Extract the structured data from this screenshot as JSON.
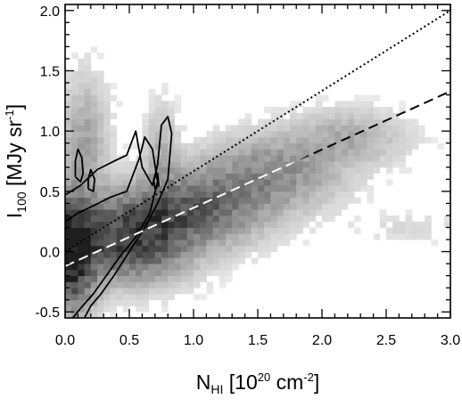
{
  "chart_data": {
    "type": "heatmap",
    "title": "",
    "xlabel": {
      "base": "N",
      "sub": "HI",
      "unit_open": " [10",
      "unit_exp": "20",
      "unit_mid": " cm",
      "unit_exp2": "-2",
      "unit_close": "]"
    },
    "ylabel": {
      "base": "I",
      "sub": "100",
      "unit_open": " [MJy sr",
      "unit_exp": "-1",
      "unit_close": "]"
    },
    "xlim": [
      0.0,
      3.0
    ],
    "ylim": [
      -0.55,
      2.05
    ],
    "x_ticks": [
      {
        "value": 0.0,
        "label": "0.0"
      },
      {
        "value": 0.5,
        "label": "0.5"
      },
      {
        "value": 1.0,
        "label": "1.0"
      },
      {
        "value": 1.5,
        "label": "1.5"
      },
      {
        "value": 2.0,
        "label": "2.0"
      },
      {
        "value": 2.5,
        "label": "2.5"
      },
      {
        "value": 3.0,
        "label": "3.0"
      }
    ],
    "y_ticks": [
      {
        "value": -0.5,
        "label": "-0.5"
      },
      {
        "value": 0.0,
        "label": "0.0"
      },
      {
        "value": 0.5,
        "label": "0.5"
      },
      {
        "value": 1.0,
        "label": "1.0"
      },
      {
        "value": 1.5,
        "label": "1.5"
      },
      {
        "value": 2.0,
        "label": "2.0"
      }
    ],
    "grid": false,
    "colormap": "grayscale (darker = higher density)",
    "density_components": [
      {
        "x_center": 0.05,
        "y_center": -0.02,
        "x_sigma": 0.12,
        "y_sigma": 0.3,
        "weight": 1.0
      },
      {
        "x_center": 0.5,
        "y_center": 0.1,
        "x_sigma": 0.3,
        "y_sigma": 0.22,
        "weight": 0.75
      },
      {
        "x_center": 1.0,
        "y_center": 0.35,
        "x_sigma": 0.35,
        "y_sigma": 0.2,
        "weight": 0.55
      },
      {
        "x_center": 1.6,
        "y_center": 0.65,
        "x_sigma": 0.35,
        "y_sigma": 0.2,
        "weight": 0.35
      },
      {
        "x_center": 2.2,
        "y_center": 0.95,
        "x_sigma": 0.3,
        "y_sigma": 0.15,
        "weight": 0.2
      },
      {
        "x_center": 0.15,
        "y_center": 0.9,
        "x_sigma": 0.12,
        "y_sigma": 0.35,
        "weight": 0.25
      },
      {
        "x_center": 0.75,
        "y_center": 0.85,
        "x_sigma": 0.08,
        "y_sigma": 0.25,
        "weight": 0.18
      },
      {
        "x_center": 2.7,
        "y_center": 0.2,
        "x_sigma": 0.3,
        "y_sigma": 0.08,
        "weight": 0.06
      }
    ],
    "contours": [
      {
        "name": "",
        "style": "solid",
        "points": [
          [
            0.0,
            0.47
          ],
          [
            0.12,
            0.55
          ],
          [
            0.25,
            0.68
          ],
          [
            0.38,
            0.75
          ],
          [
            0.48,
            0.8
          ],
          [
            0.55,
            1.0
          ],
          [
            0.6,
            0.7
          ],
          [
            0.68,
            0.55
          ],
          [
            0.72,
            0.72
          ],
          [
            0.75,
            1.05
          ],
          [
            0.8,
            1.12
          ],
          [
            0.83,
            0.98
          ],
          [
            0.8,
            0.6
          ],
          [
            0.72,
            0.4
          ],
          [
            0.62,
            0.2
          ],
          [
            0.5,
            0.0
          ],
          [
            0.38,
            -0.2
          ],
          [
            0.28,
            -0.35
          ],
          [
            0.2,
            -0.45
          ],
          [
            0.15,
            -0.55
          ]
        ]
      },
      {
        "name": "",
        "style": "solid",
        "points": [
          [
            0.0,
            0.25
          ],
          [
            0.1,
            0.32
          ],
          [
            0.22,
            0.38
          ],
          [
            0.35,
            0.45
          ],
          [
            0.48,
            0.5
          ],
          [
            0.58,
            0.78
          ],
          [
            0.62,
            0.95
          ],
          [
            0.68,
            0.85
          ],
          [
            0.72,
            0.58
          ],
          [
            0.66,
            0.32
          ],
          [
            0.55,
            0.12
          ],
          [
            0.42,
            -0.05
          ],
          [
            0.32,
            -0.2
          ],
          [
            0.22,
            -0.35
          ],
          [
            0.12,
            -0.47
          ],
          [
            0.06,
            -0.55
          ]
        ]
      },
      {
        "name": "",
        "style": "solid",
        "points": [
          [
            0.08,
            0.62
          ],
          [
            0.12,
            0.58
          ],
          [
            0.14,
            0.65
          ],
          [
            0.13,
            0.78
          ],
          [
            0.1,
            0.85
          ],
          [
            0.08,
            0.75
          ],
          [
            0.08,
            0.62
          ]
        ]
      },
      {
        "name": "",
        "style": "solid",
        "points": [
          [
            0.18,
            0.52
          ],
          [
            0.22,
            0.5
          ],
          [
            0.23,
            0.6
          ],
          [
            0.2,
            0.68
          ],
          [
            0.18,
            0.6
          ],
          [
            0.18,
            0.52
          ]
        ]
      },
      {
        "name": "",
        "style": "solid",
        "points": [
          [
            0.7,
            0.52
          ],
          [
            0.73,
            0.55
          ],
          [
            0.72,
            0.65
          ],
          [
            0.69,
            0.6
          ],
          [
            0.7,
            0.52
          ]
        ]
      }
    ],
    "fit_lines": [
      {
        "name": "",
        "style": "dotted",
        "x": [
          0.0,
          3.0
        ],
        "y": [
          0.0,
          2.0
        ]
      },
      {
        "name": "",
        "style": "dashed",
        "x": [
          0.0,
          3.0
        ],
        "y": [
          -0.12,
          1.33
        ]
      }
    ]
  }
}
